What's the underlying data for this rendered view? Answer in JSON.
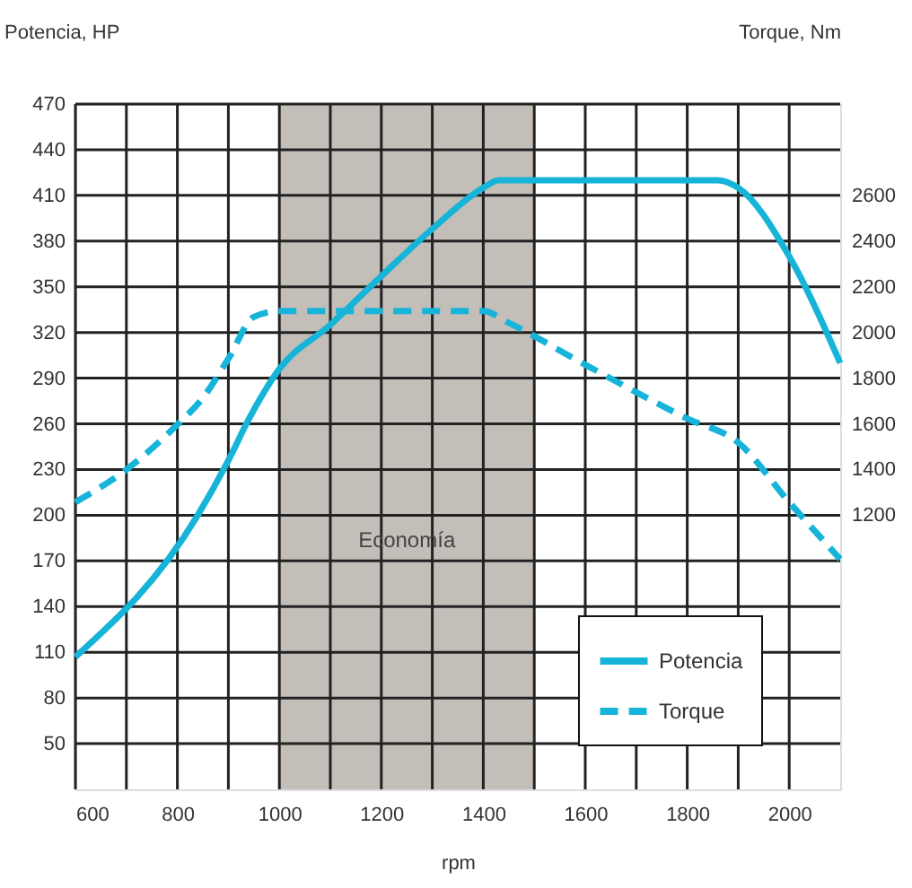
{
  "chart_data": {
    "type": "line",
    "xlabel": "rpm",
    "ylabel": "Potencia, HP",
    "y2label": "Torque, Nm",
    "xlim": [
      600,
      2100
    ],
    "xticks": [
      600,
      {
        "value": 700,
        "label": null
      },
      800,
      {
        "value": 900,
        "label": null
      },
      1000,
      {
        "value": 1100,
        "label": null
      },
      1200,
      {
        "value": 1300,
        "label": null
      },
      1400,
      {
        "value": 1500,
        "label": null
      },
      1600,
      {
        "value": 1700,
        "label": null
      },
      1800,
      {
        "value": 1900,
        "label": null
      },
      2000
    ],
    "ylim": [
      20,
      470
    ],
    "yticks": [
      50,
      80,
      110,
      140,
      170,
      200,
      230,
      260,
      290,
      320,
      350,
      380,
      410,
      440,
      470
    ],
    "y2lim": [
      0,
      3000
    ],
    "y2ticks": [
      1200,
      1400,
      1600,
      1800,
      2000,
      2200,
      2400,
      2600
    ],
    "grid": true,
    "legend": "bottom right",
    "bands": [
      {
        "axis": "x",
        "from": 1000,
        "to": 1500,
        "label": "Economía",
        "color": "#c4beb9"
      }
    ],
    "series": [
      {
        "name": "Potencia",
        "color": "#16b4d8",
        "line_style": "solid",
        "x": [
          600,
          840,
          900,
          940,
          1000,
          1100,
          1200,
          1300,
          1400,
          1430,
          1860,
          1900,
          2000,
          2100
        ],
        "values": [
          107,
          200,
          236,
          263,
          296,
          325,
          357,
          388,
          415,
          420,
          420,
          415,
          370,
          300
        ]
      },
      {
        "name": "Torque",
        "color": "#16b4d8",
        "line_style": "dashed",
        "axis": "y2",
        "x": [
          600,
          700,
          800,
          850,
          900,
          950,
          1000,
          1400,
          1450,
          1600,
          1800,
          1900,
          2000,
          2100
        ],
        "values": [
          1257,
          1400,
          1597,
          1714,
          1885,
          2068,
          2094,
          2094,
          2042,
          1859,
          1623,
          1518,
          1257,
          1008
        ]
      }
    ]
  }
}
